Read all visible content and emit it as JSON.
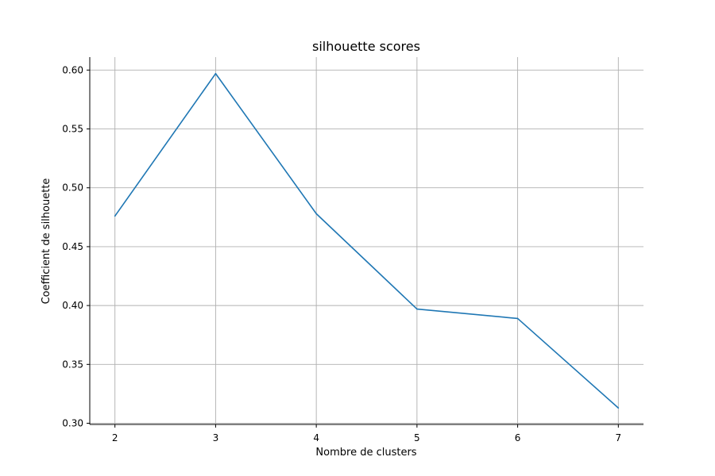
{
  "chart_data": {
    "type": "line",
    "title": "silhouette scores",
    "xlabel": "Nombre de clusters",
    "ylabel": "Coefficient de silhouette",
    "x": [
      2,
      3,
      4,
      5,
      6,
      7
    ],
    "series": [
      {
        "values": [
          0.476,
          0.597,
          0.478,
          0.397,
          0.389,
          0.313
        ],
        "color": "#1f77b4"
      }
    ],
    "xticks": [
      "2",
      "3",
      "4",
      "5",
      "6",
      "7"
    ],
    "yticks": [
      "0.30",
      "0.35",
      "0.40",
      "0.45",
      "0.50",
      "0.55",
      "0.60"
    ],
    "xlim": [
      1.75,
      7.25
    ],
    "ylim": [
      0.299,
      0.611
    ],
    "grid": true,
    "legend": "none"
  }
}
